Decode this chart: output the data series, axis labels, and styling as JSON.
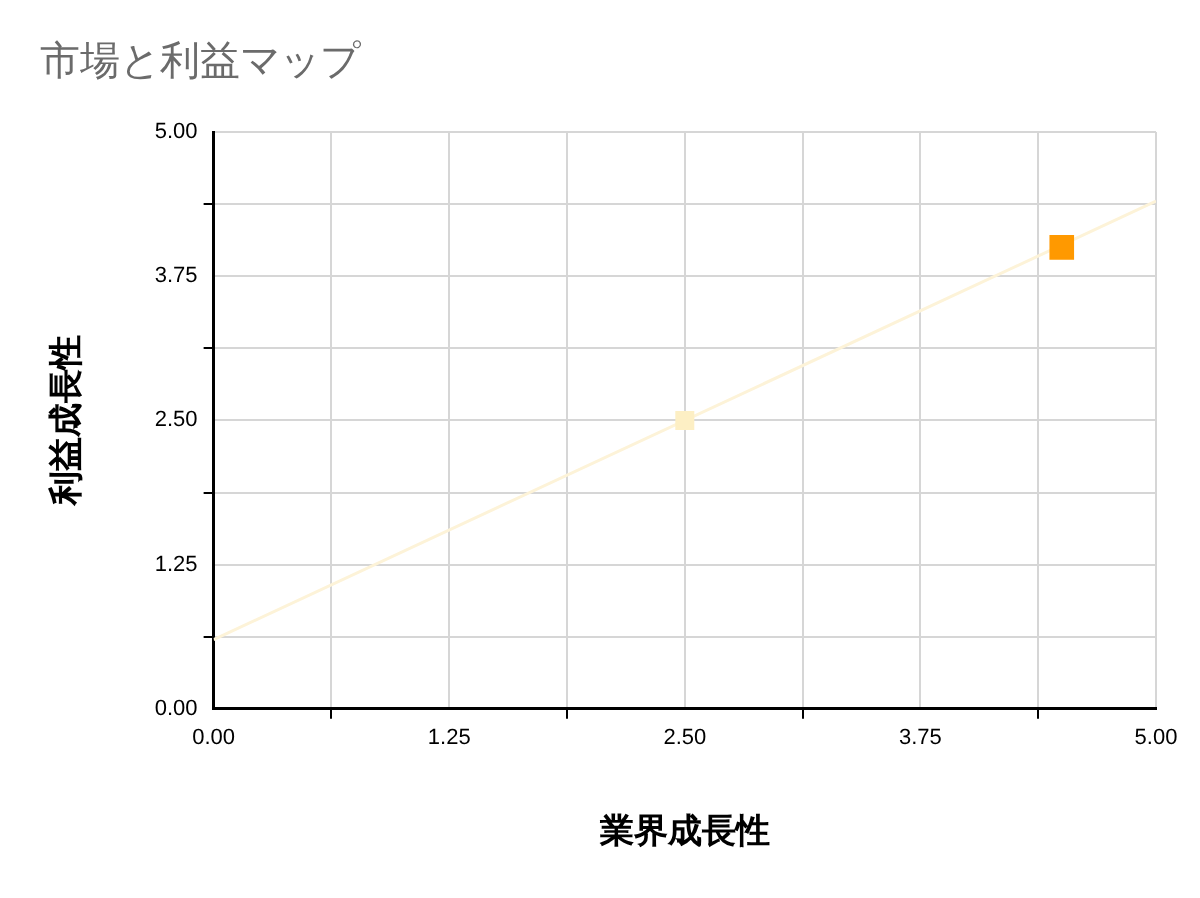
{
  "chart_data": {
    "type": "scatter",
    "title": "市場と利益マップ",
    "xlabel": "業界成長性",
    "ylabel": "利益成長性",
    "series": [
      {
        "x": [
          2.5,
          4.5
        ],
        "values": [
          2.5,
          4.0
        ],
        "colors": [
          "#fdefc4",
          "#ff9900"
        ],
        "marker": "square"
      },
      {
        "type": "line",
        "x": [
          0,
          5
        ],
        "values": [
          0.6,
          4.4
        ],
        "color": "#fdf3d8",
        "marker": "none"
      }
    ],
    "xlim": [
      0,
      5
    ],
    "ylim": [
      0,
      5
    ],
    "xticks": [
      {
        "value": 0,
        "label": "0.00"
      },
      {
        "value": 0.625,
        "label": null
      },
      {
        "value": 1.25,
        "label": "1.25"
      },
      {
        "value": 1.875,
        "label": null
      },
      {
        "value": 2.5,
        "label": "2.50"
      },
      {
        "value": 3.125,
        "label": null
      },
      {
        "value": 3.75,
        "label": "3.75"
      },
      {
        "value": 4.375,
        "label": null
      },
      {
        "value": 5,
        "label": "5.00"
      }
    ],
    "yticks": [
      {
        "value": 0,
        "label": "0.00"
      },
      {
        "value": 0.625,
        "label": null
      },
      {
        "value": 1.25,
        "label": "1.25"
      },
      {
        "value": 1.875,
        "label": null
      },
      {
        "value": 2.5,
        "label": "2.50"
      },
      {
        "value": 3.125,
        "label": null
      },
      {
        "value": 3.75,
        "label": "3.75"
      },
      {
        "value": 4.375,
        "label": null
      },
      {
        "value": 5,
        "label": "5.00"
      }
    ],
    "grid": true,
    "legend": false
  }
}
